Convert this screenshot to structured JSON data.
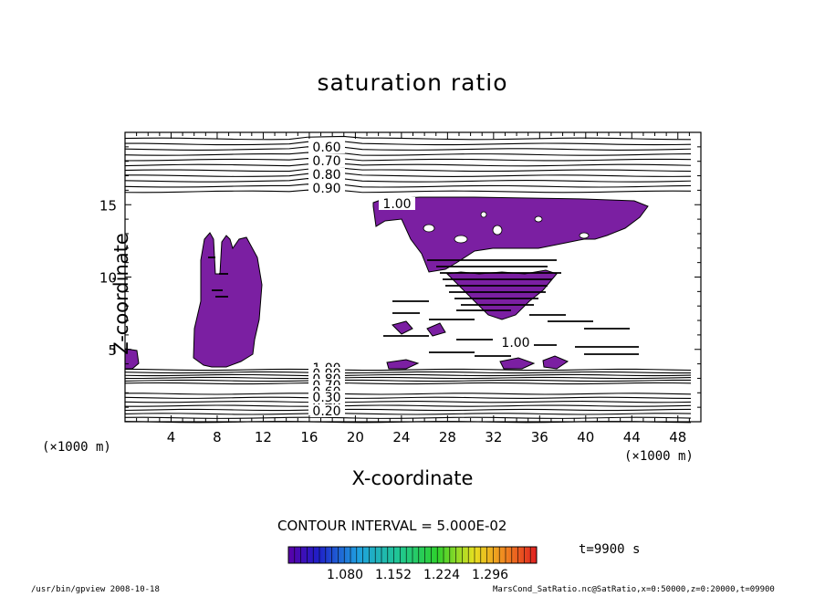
{
  "chart_data": {
    "type": "contour",
    "title": "saturation ratio",
    "xlabel": "X-coordinate",
    "ylabel": "Z-coordinate",
    "x_unit": "(×1000 m)",
    "xlim": [
      0,
      50
    ],
    "ylim": [
      0,
      20
    ],
    "x_ticks": [
      "4",
      "8",
      "12",
      "16",
      "20",
      "24",
      "28",
      "32",
      "36",
      "40",
      "44",
      "48"
    ],
    "y_ticks": [
      "5",
      "10",
      "15"
    ],
    "contour_labels": [
      "0.60",
      "0.70",
      "0.80",
      "0.90",
      "1.00",
      "1.00",
      "0.90",
      "0.80",
      "0.70",
      "0.60",
      "0.50",
      "0.40",
      "0.30",
      "0.20",
      "1.00"
    ],
    "contour_interval_text": "CONTOUR INTERVAL = 5.000E-02",
    "colorbar_ticks": [
      "1.080",
      "1.152",
      "1.224",
      "1.296"
    ],
    "supersaturated_fill_color": "#7b1fa2",
    "time_label": "t=9900 s"
  },
  "footer": {
    "left": "/usr/bin/gpview   2008-10-18",
    "right": "MarsCond_SatRatio.nc@SatRatio,x=0:50000,z=0:20000,t=09900"
  }
}
